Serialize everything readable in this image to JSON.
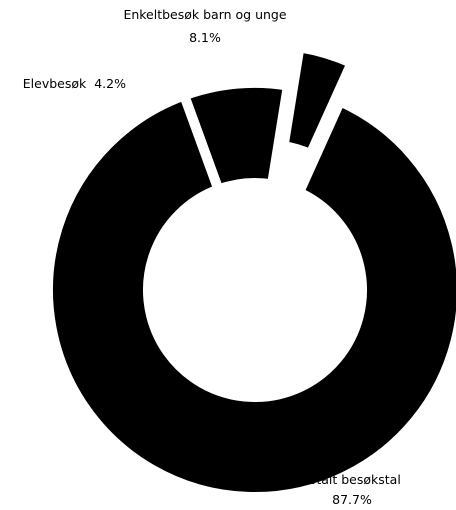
{
  "chart_data": {
    "type": "pie",
    "title": "",
    "donut": true,
    "legend": "none",
    "colors": {
      "slice": "#000000",
      "background": "#ffffff"
    },
    "slices": [
      {
        "label": "Enkeltbesøk barn og unge",
        "value": 8.1,
        "pct_label": "8.1%"
      },
      {
        "label": "Elevbesøk",
        "value": 4.2,
        "pct_label": "4.2%"
      },
      {
        "label": "Totalt besøkstal",
        "value": 87.7,
        "pct_label": "87.7%"
      }
    ]
  }
}
